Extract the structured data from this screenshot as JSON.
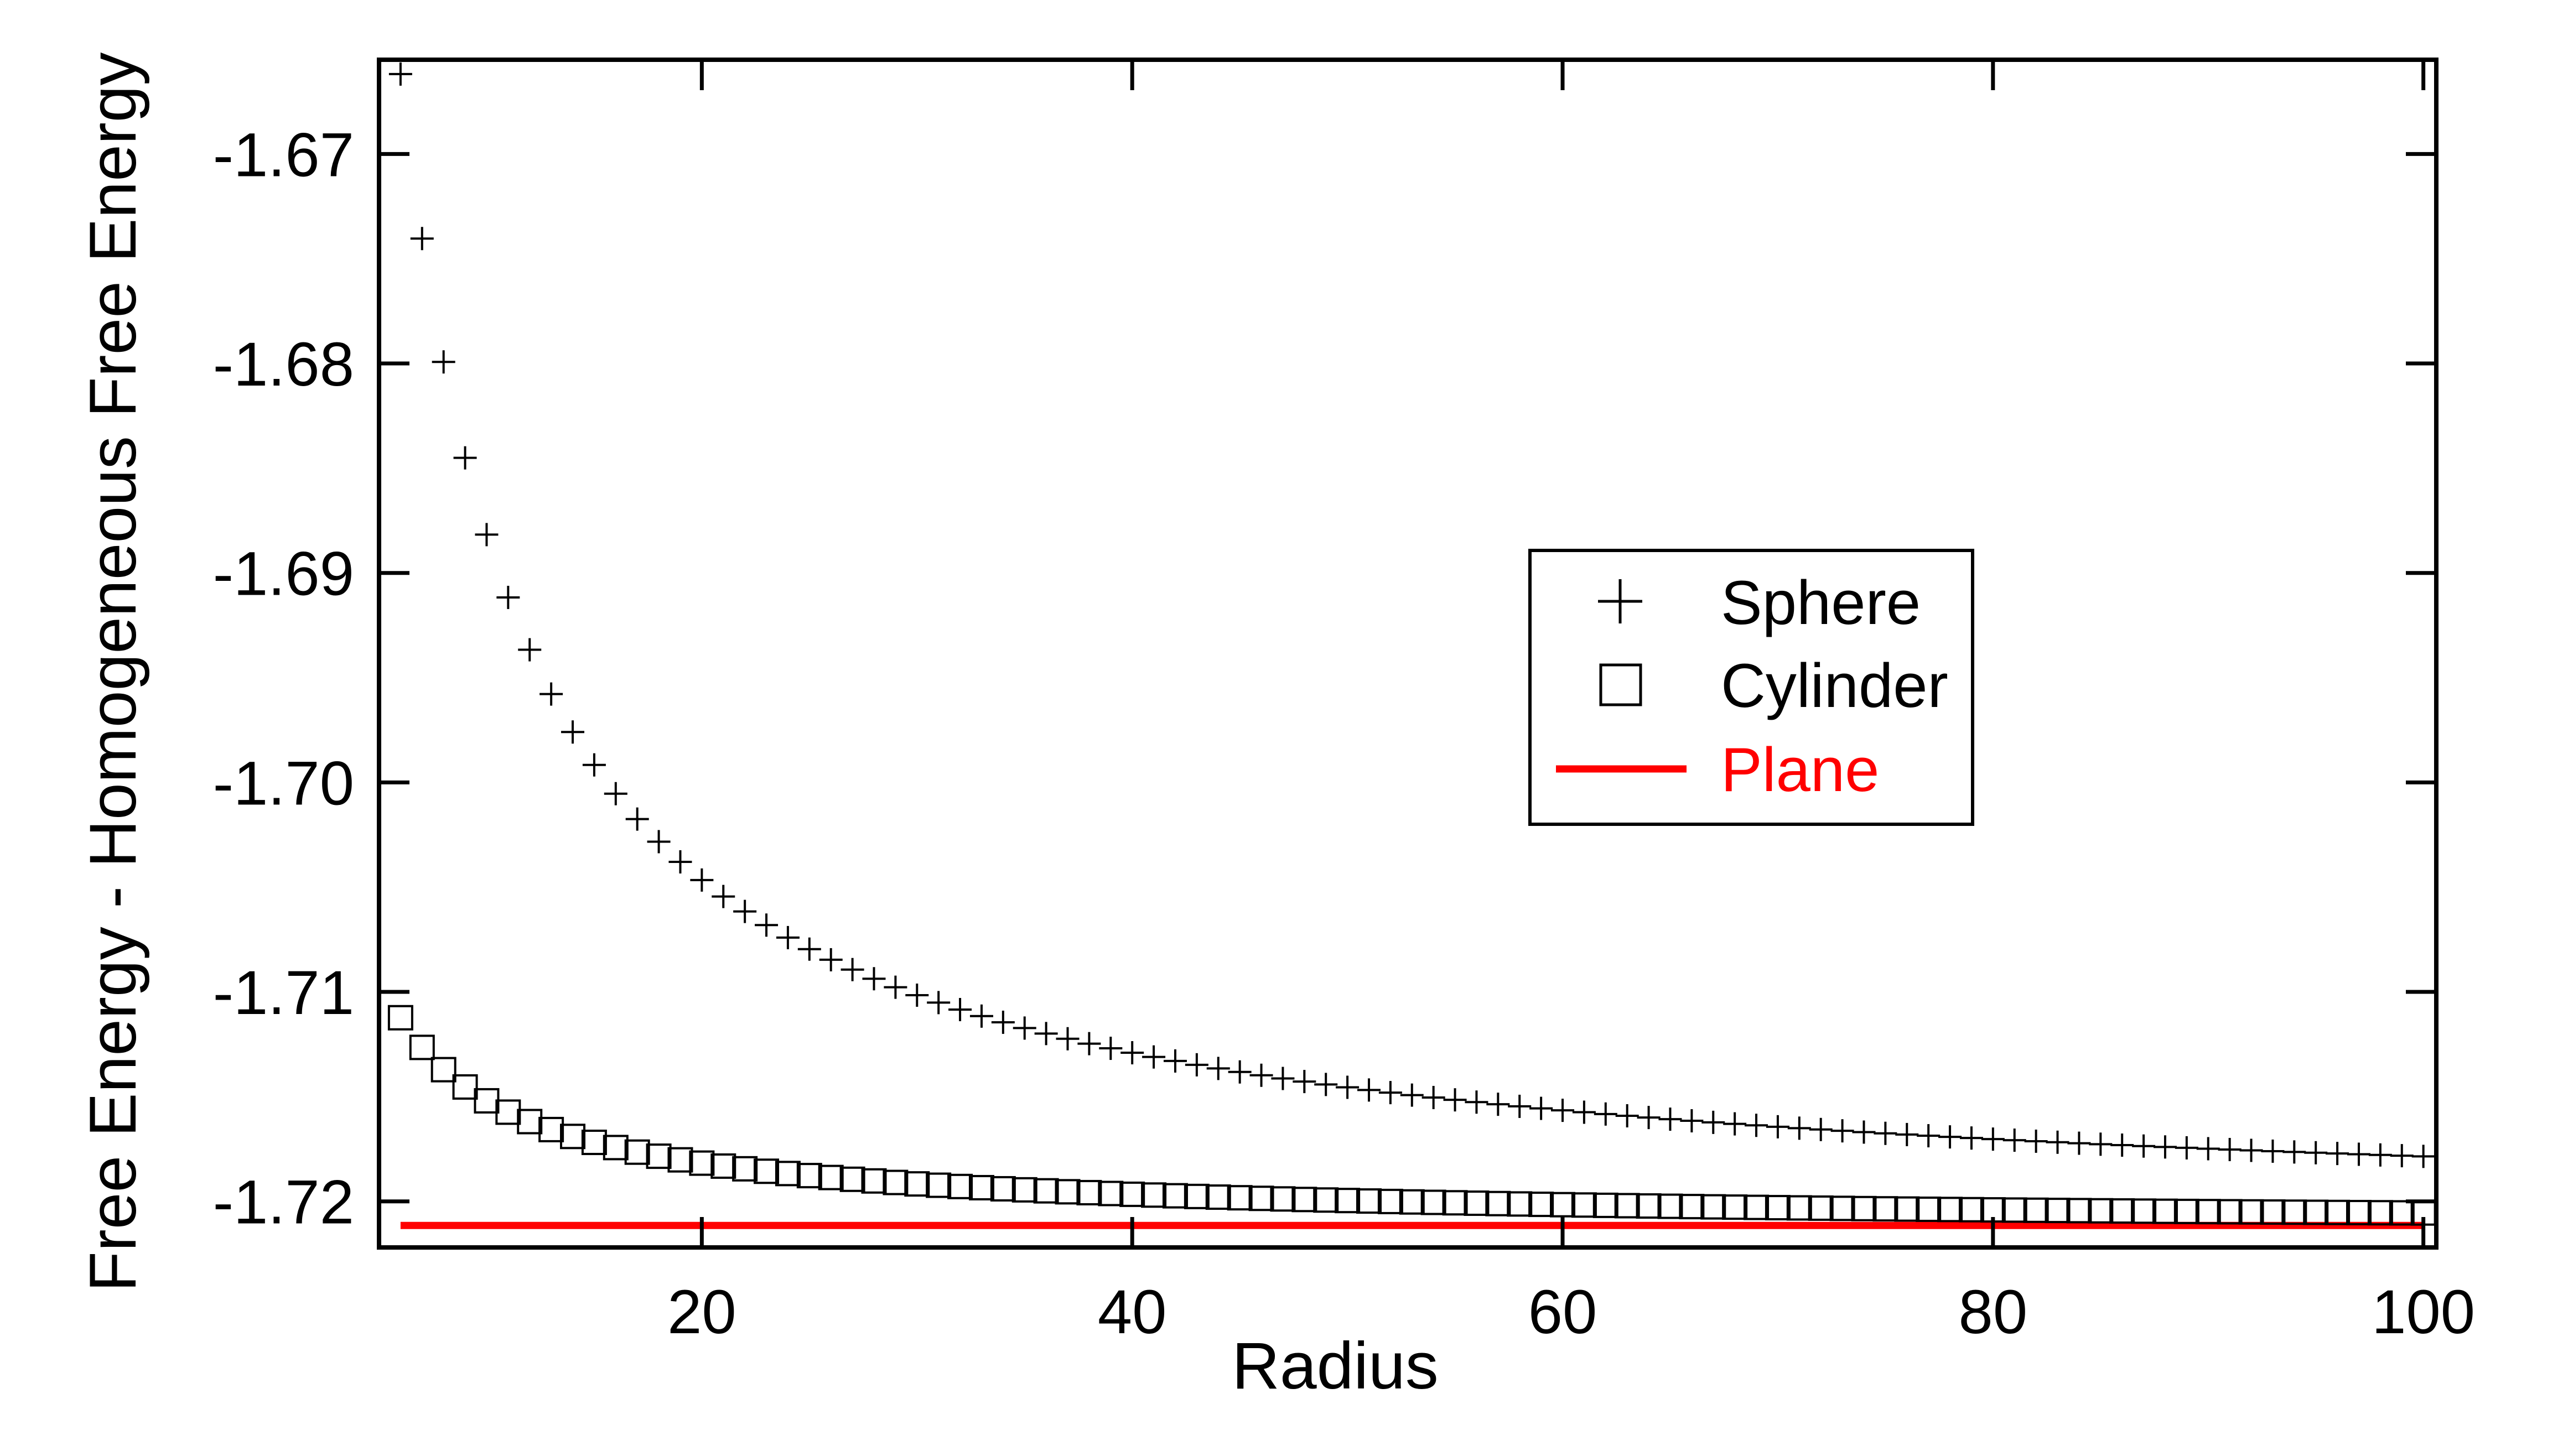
{
  "chart_data": {
    "type": "scatter",
    "xlabel": "Radius",
    "ylabel": "Free Energy - Homogeneous Free Energy",
    "xlim": [
      5,
      100.6
    ],
    "ylim": [
      -1.7222,
      -1.6655
    ],
    "x_ticks": [
      20,
      40,
      60,
      80,
      100
    ],
    "x_tick_labels": [
      "20",
      "40",
      "60",
      "80",
      "100"
    ],
    "y_ticks": [
      -1.67,
      -1.68,
      -1.69,
      -1.7,
      -1.71,
      -1.72
    ],
    "y_tick_labels": [
      "-1.67",
      "-1.68",
      "-1.69",
      "-1.70",
      "-1.71",
      "-1.72"
    ],
    "grid": false,
    "legend_position": "center-right",
    "series": [
      {
        "name": "Sphere",
        "marker": "plus",
        "color": "#000000",
        "x_start": 6,
        "x_step": 1,
        "x_end": 100,
        "model": {
          "kind": "a_plus_b_over_x",
          "a": -1.72115,
          "b": 0.3298
        }
      },
      {
        "name": "Cylinder",
        "marker": "square",
        "color": "#000000",
        "x_start": 6,
        "x_step": 1,
        "x_end": 100,
        "model": {
          "kind": "a_plus_b_over_x",
          "a": -1.72115,
          "b": 0.0595
        }
      },
      {
        "name": "Plane",
        "marker": "line",
        "color": "#ff0000",
        "x": [
          6,
          100
        ],
        "y": [
          -1.72115,
          -1.72115
        ]
      }
    ]
  }
}
